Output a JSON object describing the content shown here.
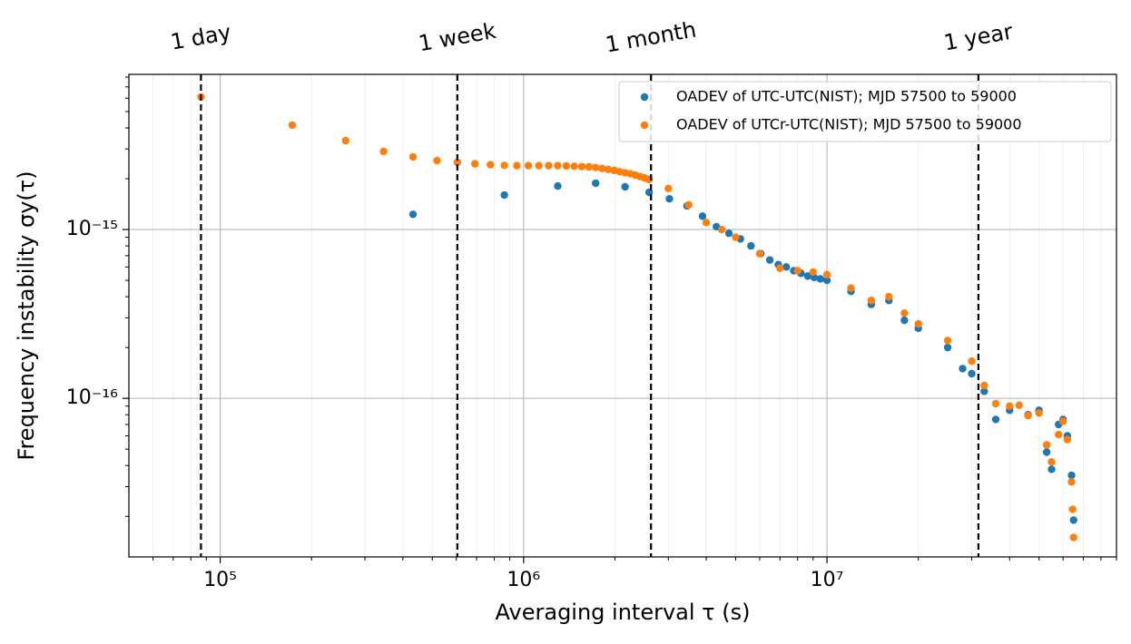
{
  "chart_data": {
    "type": "scatter",
    "xlabel": "Averaging interval τ (s)",
    "ylabel": "Frequency instability σy(τ)",
    "log_x": true,
    "log_y": true,
    "grid": true,
    "legend": "upper right",
    "xlim": [
      50000,
      90000000
    ],
    "ylim": [
      1.15e-17,
      8.3e-15
    ],
    "xticks": [
      {
        "value": 100000,
        "label": "10⁵"
      },
      {
        "value": 1000000,
        "label": "10⁶"
      },
      {
        "value": 10000000,
        "label": "10⁷"
      }
    ],
    "yticks": [
      {
        "value": 1e-16,
        "label": "10⁻¹⁶"
      },
      {
        "value": 1e-15,
        "label": "10⁻¹⁵"
      }
    ],
    "x_minor_ticks": [
      60000,
      70000,
      80000,
      90000,
      200000,
      300000,
      400000,
      500000,
      600000,
      700000,
      800000,
      900000,
      2000000,
      3000000,
      4000000,
      5000000,
      6000000,
      7000000,
      8000000,
      9000000,
      20000000,
      30000000,
      40000000,
      50000000,
      60000000,
      70000000,
      80000000,
      90000000
    ],
    "y_minor_ticks": [
      2e-17,
      3e-17,
      4e-17,
      5e-17,
      6e-17,
      7e-17,
      8e-17,
      9e-17,
      2e-16,
      3e-16,
      4e-16,
      5e-16,
      6e-16,
      7e-16,
      8e-16,
      9e-16,
      2e-15,
      3e-15,
      4e-15,
      5e-15,
      6e-15,
      7e-15,
      8e-15
    ],
    "vlines": [
      {
        "value": 86400,
        "label": "1 day"
      },
      {
        "value": 604800,
        "label": "1 week"
      },
      {
        "value": 2630000,
        "label": "1 month"
      },
      {
        "value": 31560000,
        "label": "1 year"
      }
    ],
    "series": [
      {
        "name": "OADEV of UTC-UTC(NIST); MJD 57500 to 59000",
        "color": "#1f77b4",
        "x": [
          432000,
          864000,
          1296000,
          1728000,
          2160000,
          2592000,
          3024000,
          3456000,
          3888000,
          4320000,
          4752000,
          5184000,
          5616000,
          6048000,
          6480000,
          6912000,
          7344000,
          7776000,
          8208000,
          8640000,
          9072000,
          9504000,
          10000000,
          12000000,
          14000000,
          16000000,
          18000000,
          20000000,
          25000000,
          28000000,
          30000000,
          33000000,
          36000000,
          40000000,
          46000000,
          50000000,
          53000000,
          55000000,
          58000000,
          60000000,
          62000000,
          64000000,
          65000000
        ],
        "values": [
          1.23e-15,
          1.6e-15,
          1.81e-15,
          1.88e-15,
          1.79e-15,
          1.66e-15,
          1.52e-15,
          1.38e-15,
          1.2e-15,
          1.04e-15,
          9.5e-16,
          8.8e-16,
          8e-16,
          7.2e-16,
          6.6e-16,
          6.2e-16,
          6e-16,
          5.7e-16,
          5.5e-16,
          5.3e-16,
          5.2e-16,
          5.1e-16,
          5e-16,
          4.3e-16,
          3.6e-16,
          3.8e-16,
          2.9e-16,
          2.6e-16,
          2e-16,
          1.5e-16,
          1.4e-16,
          1.1e-16,
          7.5e-17,
          8.5e-17,
          8e-17,
          8.5e-17,
          4.8e-17,
          3.8e-17,
          7e-17,
          7.5e-17,
          6e-17,
          3.5e-17,
          1.9e-17
        ]
      },
      {
        "name": "OADEV of UTCr-UTC(NIST); MJD 57500 to 59000",
        "color": "#ff7f0e",
        "x": [
          86400,
          172800,
          259200,
          345600,
          432000,
          518400,
          604800,
          691200,
          777600,
          864000,
          950400,
          1036800,
          1123200,
          1209600,
          1296000,
          1382400,
          1468800,
          1555200,
          1641600,
          1728000,
          1814400,
          1900800,
          1987200,
          2073600,
          2160000,
          2246400,
          2332800,
          2419200,
          2505600,
          2592000,
          3000000,
          3500000,
          4000000,
          4500000,
          5000000,
          6000000,
          7000000,
          8000000,
          9000000,
          10000000,
          12000000,
          14000000,
          16000000,
          18000000,
          20000000,
          25000000,
          30000000,
          33000000,
          36000000,
          40000000,
          43000000,
          46000000,
          50000000,
          53000000,
          55000000,
          58000000,
          60000000,
          62000000,
          64000000,
          64500000,
          65000000
        ],
        "values": [
          6.1e-15,
          4.15e-15,
          3.36e-15,
          2.9e-15,
          2.69e-15,
          2.56e-15,
          2.5e-15,
          2.45e-15,
          2.42e-15,
          2.4e-15,
          2.39e-15,
          2.39e-15,
          2.39e-15,
          2.39e-15,
          2.39e-15,
          2.38e-15,
          2.37e-15,
          2.36e-15,
          2.35e-15,
          2.33e-15,
          2.3e-15,
          2.27e-15,
          2.24e-15,
          2.2e-15,
          2.17e-15,
          2.14e-15,
          2.1e-15,
          2.06e-15,
          2.02e-15,
          1.98e-15,
          1.75e-15,
          1.4e-15,
          1.1e-15,
          1e-15,
          9e-16,
          7.2e-16,
          5.9e-16,
          5.7e-16,
          5.6e-16,
          5.4e-16,
          4.5e-16,
          3.8e-16,
          4e-16,
          3.2e-16,
          2.76e-16,
          2.2e-16,
          1.66e-16,
          1.19e-16,
          9.3e-17,
          9e-17,
          9.1e-17,
          7.9e-17,
          8.2e-17,
          5.3e-17,
          4.2e-17,
          6.1e-17,
          7.3e-17,
          5.7e-17,
          3.2e-17,
          2.2e-17,
          1.5e-17
        ]
      }
    ]
  }
}
